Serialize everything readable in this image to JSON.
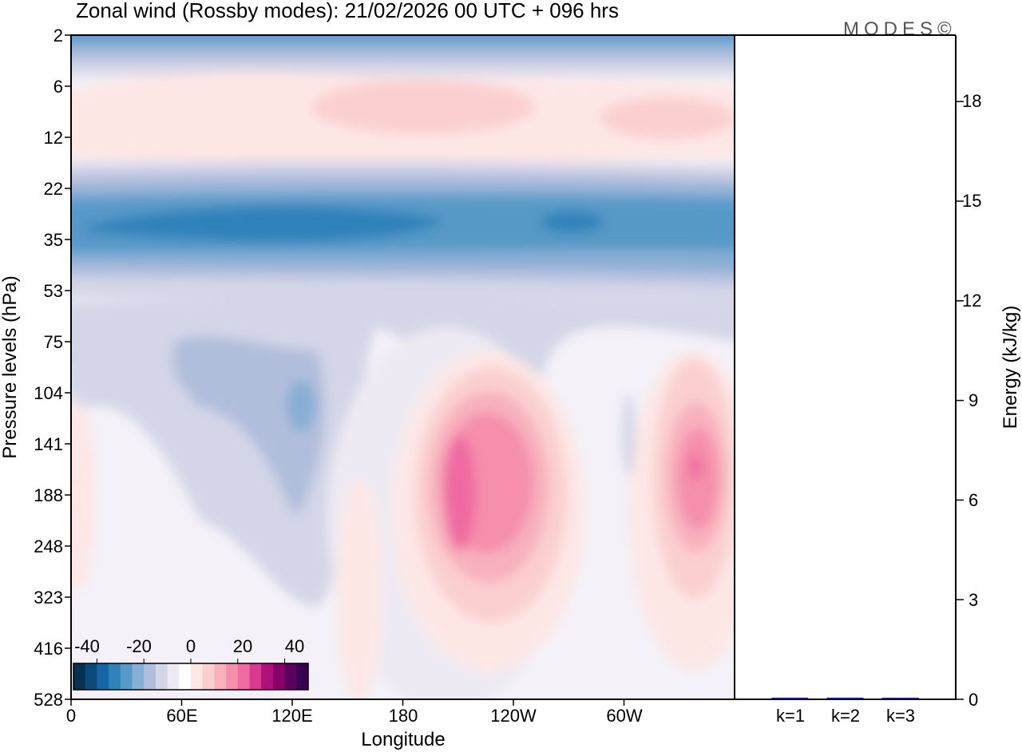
{
  "chart_data": [
    {
      "type": "heatmap",
      "title": "Zonal wind (Rossby modes):  21/02/2026  00 UTC  + 096 hrs",
      "xlabel": "Longitude",
      "ylabel": "Pressure levels (hPa)",
      "x_ticks": [
        "0",
        "60E",
        "120E",
        "180",
        "120W",
        "60W"
      ],
      "x_tick_degrees": [
        0,
        60,
        120,
        180,
        240,
        300
      ],
      "x_range_degrees": [
        0,
        360
      ],
      "y_ticks": [
        "2",
        "6",
        "12",
        "22",
        "35",
        "53",
        "75",
        "104",
        "141",
        "188",
        "248",
        "323",
        "416",
        "528"
      ],
      "colorbar": {
        "ticks": [
          "-40",
          "-20",
          "0",
          "20",
          "40"
        ],
        "tick_values": [
          -40,
          -20,
          0,
          20,
          40
        ],
        "range": [
          -50,
          50
        ],
        "colors": [
          "#08304f",
          "#0a4a7c",
          "#1467a4",
          "#2f82ba",
          "#5799c8",
          "#87aed4",
          "#b0bedc",
          "#d4d6e7",
          "#eeeaf3",
          "#ffffff",
          "#fde7e5",
          "#fbcfcf",
          "#f8b1bd",
          "#f58fab",
          "#ef6aa2",
          "#d9398f",
          "#b0107a",
          "#8a006a",
          "#5c005e",
          "#3a004f"
        ]
      },
      "field_features": [
        {
          "name": "upper-stratosphere easterlies",
          "level_hPa": [
            2,
            4
          ],
          "value": -25
        },
        {
          "name": "stratospheric easterly jet",
          "level_hPa": [
            22,
            53
          ],
          "value": -30
        },
        {
          "name": "weak easterlies 60E-125E",
          "level_hPa": [
            75,
            323
          ],
          "value": -10
        },
        {
          "name": "westerly maximum near 155W",
          "level_hPa": [
            104,
            323
          ],
          "value": 20
        },
        {
          "name": "westerly maximum near 20W",
          "level_hPa": [
            104,
            323
          ],
          "value": 15
        },
        {
          "name": "weak westerlies",
          "level_hPa": [
            6,
            16
          ],
          "value": 4
        }
      ]
    },
    {
      "type": "bar",
      "categories": [
        "k=1",
        "k=2",
        "k=3"
      ],
      "values": [
        0.05,
        0.05,
        0.02
      ],
      "ylabel": "Energy (kJ/kg)",
      "ylim": [
        0,
        20
      ],
      "y_ticks": [
        "0",
        "3",
        "6",
        "9",
        "12",
        "15",
        "18"
      ],
      "y_tick_values": [
        0,
        3,
        6,
        9,
        12,
        15,
        18
      ],
      "bar_color": "#1a1a6e"
    }
  ],
  "watermark": "MODES©"
}
